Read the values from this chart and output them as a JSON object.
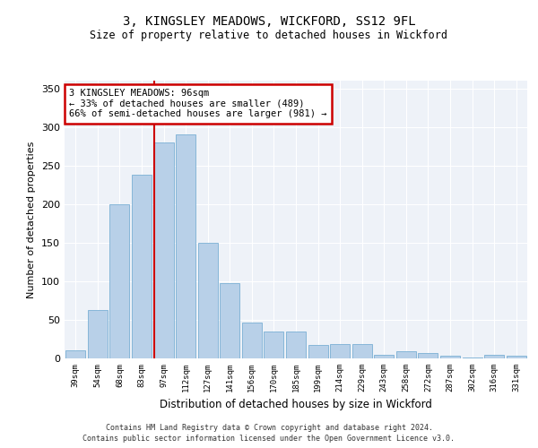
{
  "title1": "3, KINGSLEY MEADOWS, WICKFORD, SS12 9FL",
  "title2": "Size of property relative to detached houses in Wickford",
  "xlabel": "Distribution of detached houses by size in Wickford",
  "ylabel": "Number of detached properties",
  "categories": [
    "39sqm",
    "54sqm",
    "68sqm",
    "83sqm",
    "97sqm",
    "112sqm",
    "127sqm",
    "141sqm",
    "156sqm",
    "170sqm",
    "185sqm",
    "199sqm",
    "214sqm",
    "229sqm",
    "243sqm",
    "258sqm",
    "272sqm",
    "287sqm",
    "302sqm",
    "316sqm",
    "331sqm"
  ],
  "values": [
    11,
    63,
    200,
    238,
    280,
    290,
    150,
    97,
    47,
    35,
    35,
    18,
    19,
    19,
    5,
    9,
    7,
    4,
    1,
    5,
    3
  ],
  "bar_color": "#b8d0e8",
  "bar_edge_color": "#7aafd4",
  "vline_x_index": 4,
  "vline_color": "#cc0000",
  "annotation_text": "3 KINGSLEY MEADOWS: 96sqm\n← 33% of detached houses are smaller (489)\n66% of semi-detached houses are larger (981) →",
  "annotation_box_color": "#cc0000",
  "ylim": [
    0,
    360
  ],
  "yticks": [
    0,
    50,
    100,
    150,
    200,
    250,
    300,
    350
  ],
  "footer1": "Contains HM Land Registry data © Crown copyright and database right 2024.",
  "footer2": "Contains public sector information licensed under the Open Government Licence v3.0.",
  "bg_color": "#eef2f8"
}
